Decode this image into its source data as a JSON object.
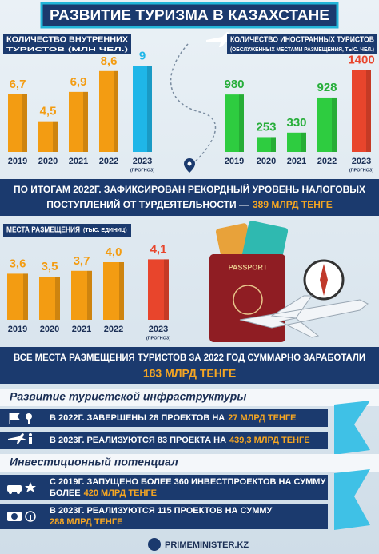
{
  "title": "РАЗВИТИЕ ТУРИЗМА В КАЗАХСТАНЕ",
  "chart_data": [
    {
      "type": "bar",
      "title": "КОЛИЧЕСТВО ВНУТРЕННИХ",
      "subtitle": "ТУРИСТОВ (МЛН ЧЕЛ.)",
      "categories": [
        "2019",
        "2020",
        "2021",
        "2022",
        "2023"
      ],
      "values": [
        6.7,
        4.5,
        6.9,
        8.6,
        9
      ],
      "value_labels": [
        "6,7",
        "4,5",
        "6,9",
        "8,6",
        "9"
      ],
      "colors": [
        "#f39c12",
        "#f39c12",
        "#f39c12",
        "#f39c12",
        "#1fb6e8"
      ],
      "note": "(ПРОГНОЗ)",
      "ylim": [
        2,
        9.5
      ]
    },
    {
      "type": "bar",
      "title": "КОЛИЧЕСТВО ИНОСТРАННЫХ ТУРИСТОВ",
      "subtitle": "(ОБСЛУЖЕННЫХ МЕСТАМИ РАЗМЕЩЕНИЯ, ТЫС. ЧЕЛ.)",
      "categories": [
        "2019",
        "2020",
        "2021",
        "2022",
        "2023"
      ],
      "values": [
        980,
        253,
        330,
        928,
        1400
      ],
      "colors": [
        "#2ecc40",
        "#2ecc40",
        "#2ecc40",
        "#2ecc40",
        "#e8452c"
      ],
      "note": "(ПРОГНОЗ)",
      "ylim": [
        0,
        1500
      ]
    },
    {
      "type": "bar",
      "title": "МЕСТА РАЗМЕЩЕНИЯ",
      "subtitle": "(ТЫС. ЕДИНИЦ)",
      "categories": [
        "2019",
        "2020",
        "2021",
        "2022",
        "2023"
      ],
      "values": [
        3.6,
        3.5,
        3.7,
        4.0,
        4.1
      ],
      "value_labels": [
        "3,6",
        "3,5",
        "3,7",
        "4,0",
        "4,1"
      ],
      "colors": [
        "#f39c12",
        "#f39c12",
        "#f39c12",
        "#f39c12",
        "#e8452c"
      ],
      "note": "(ПРОГНОЗ)",
      "ylim": [
        2,
        4.5
      ]
    }
  ],
  "tax_statement": {
    "line1": "ПО ИТОГАМ 2022Г. ЗАФИКСИРОВАН РЕКОРДНЫЙ УРОВЕНЬ НАЛОГОВЫХ",
    "line2": "ПОСТУПЛЕНИЙ ОТ ТУРДЕЯТЕЛЬНОСТИ —",
    "highlight": "389 МЛРД ТЕНГЕ"
  },
  "revenue_statement": {
    "line1": "ВСЕ МЕСТА РАЗМЕЩЕНИЯ ТУРИСТОВ ЗА 2022 ГОД СУММАРНО ЗАРАБОТАЛИ",
    "highlight": "183 МЛРД ТЕНГЕ"
  },
  "infrastructure": {
    "heading": "Развитие туристской инфраструктуры",
    "items": [
      {
        "text": "В 2022Г. ЗАВЕРШЕНЫ 28 ПРОЕКТОВ НА",
        "highlight": "27 МЛРД ТЕНГЕ"
      },
      {
        "text": "В 2023Г. РЕАЛИЗУЮТСЯ 83 ПРОЕКТА НА",
        "highlight": "439,3 МЛРД ТЕНГЕ"
      }
    ]
  },
  "investment": {
    "heading": "Инвестиционный потенциал",
    "items": [
      {
        "text": "С 2019Г. ЗАПУЩЕНО БОЛЕЕ 360 ИНВЕСТПРОЕКТОВ НА СУММУ",
        "text2": "БОЛЕЕ",
        "highlight": "420 МЛРД ТЕНГЕ"
      },
      {
        "text": "В 2023Г. РЕАЛИЗУЮТСЯ 115 ПРОЕКТОВ НА СУММУ",
        "highlight": "288 МЛРД ТЕНГЕ"
      }
    ]
  },
  "footer": "PRIMEMINISTER.KZ"
}
